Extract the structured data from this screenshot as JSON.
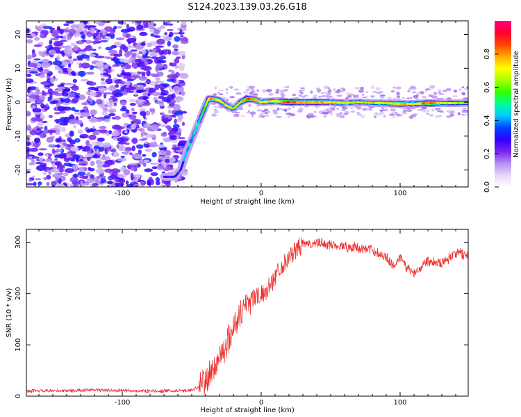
{
  "title": "S124.2023.139.03.26.G18",
  "chart_data": [
    {
      "type": "heatmap",
      "title": "",
      "xlabel": "Height of straight line (km)",
      "ylabel": "Frequency (Hz)",
      "xlim": [
        -169,
        149
      ],
      "ylim": [
        -25,
        24
      ],
      "xticks": [
        -100,
        0,
        100
      ],
      "yticks": [
        -20,
        -10,
        0,
        10,
        20
      ],
      "colorbar": {
        "label": "Normalized spectral amplitude",
        "range": [
          0,
          1
        ],
        "ticks": [
          0.0,
          0.2,
          0.4,
          0.6,
          0.8
        ],
        "tick_labels": [
          "0.0",
          "0.2",
          "0.4",
          "0.6",
          "0.8"
        ],
        "colormap": [
          "#ffffff",
          "#e6d6f7",
          "#b48ef0",
          "#7a22f0",
          "#3000ff",
          "#0044ff",
          "#00ccff",
          "#00ff99",
          "#33ff00",
          "#aaff00",
          "#ffff00",
          "#ffaa00",
          "#ff4400",
          "#ff0033",
          "#ff0077"
        ]
      },
      "noise_region_x": [
        -169,
        -55
      ],
      "ridge": {
        "x": [
          -70,
          -62,
          -58,
          -53,
          -48,
          -43,
          -38,
          -35,
          -30,
          -25,
          -20,
          -15,
          -10,
          -5,
          0,
          5,
          10,
          20,
          30,
          40,
          50,
          60,
          70,
          80,
          90,
          100,
          110,
          120,
          130,
          140,
          149
        ],
        "frequency": [
          -22,
          -22,
          -20,
          -14,
          -9,
          -4,
          1,
          1,
          0.5,
          -1,
          -2,
          0,
          1,
          0.8,
          0,
          0.2,
          0.3,
          0,
          0,
          0,
          0,
          -0.2,
          0,
          -0.2,
          -0.3,
          -0.5,
          -0.5,
          -0.3,
          -0.3,
          -0.3,
          -0.2
        ],
        "amplitude": [
          0.25,
          0.3,
          0.35,
          0.4,
          0.45,
          0.5,
          0.75,
          0.8,
          0.7,
          0.75,
          0.65,
          0.7,
          0.85,
          0.8,
          0.7,
          0.75,
          0.7,
          0.88,
          0.75,
          0.8,
          0.72,
          0.7,
          0.68,
          0.65,
          0.7,
          0.78,
          0.7,
          0.85,
          0.7,
          0.65,
          0.6
        ]
      }
    },
    {
      "type": "line",
      "title": "",
      "xlabel": "Height of straight line (km)",
      "ylabel": "SNR (10 * v/v)",
      "xlim": [
        -169,
        149
      ],
      "ylim": [
        0,
        325
      ],
      "xticks": [
        -100,
        0,
        100
      ],
      "yticks": [
        0,
        100,
        200,
        300
      ],
      "color": "#ee3333",
      "x": [
        -169,
        -150,
        -120,
        -90,
        -60,
        -50,
        -45,
        -40,
        -35,
        -30,
        -25,
        -20,
        -15,
        -10,
        -5,
        0,
        5,
        10,
        15,
        20,
        25,
        30,
        40,
        50,
        60,
        70,
        80,
        90,
        95,
        100,
        105,
        110,
        115,
        120,
        130,
        140,
        149
      ],
      "values": [
        10,
        10,
        12,
        10,
        10,
        12,
        18,
        30,
        50,
        75,
        100,
        135,
        160,
        185,
        195,
        195,
        210,
        235,
        255,
        270,
        285,
        295,
        298,
        295,
        292,
        288,
        285,
        270,
        255,
        270,
        250,
        240,
        252,
        265,
        260,
        280,
        275
      ]
    }
  ]
}
